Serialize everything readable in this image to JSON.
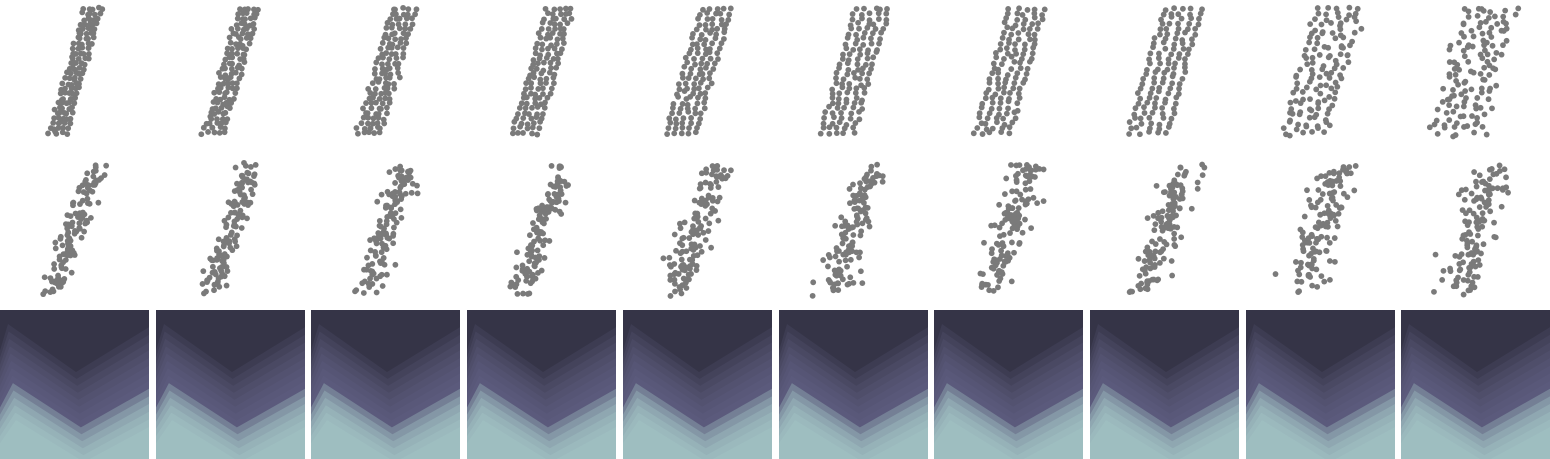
{
  "colors": {
    "background": "#ffffff",
    "point": "#7a7a7a",
    "tile_dark": "#353447",
    "tile_mid": "#6c6a8e",
    "tile_light": "#a3c8c8"
  },
  "grid_row": {
    "panel_count": 10,
    "shape": "rows-of-points-forming-a-tilted-band",
    "sequence": "structured-grid-gradually-loosening"
  },
  "noisy_row": {
    "panel_count": 10,
    "shape": "scattered-points-along-a-diagonal"
  },
  "tile_row": {
    "panel_count": 10,
    "shape": "triangular-wave-gradient-tile",
    "wave_peaks": 2
  }
}
